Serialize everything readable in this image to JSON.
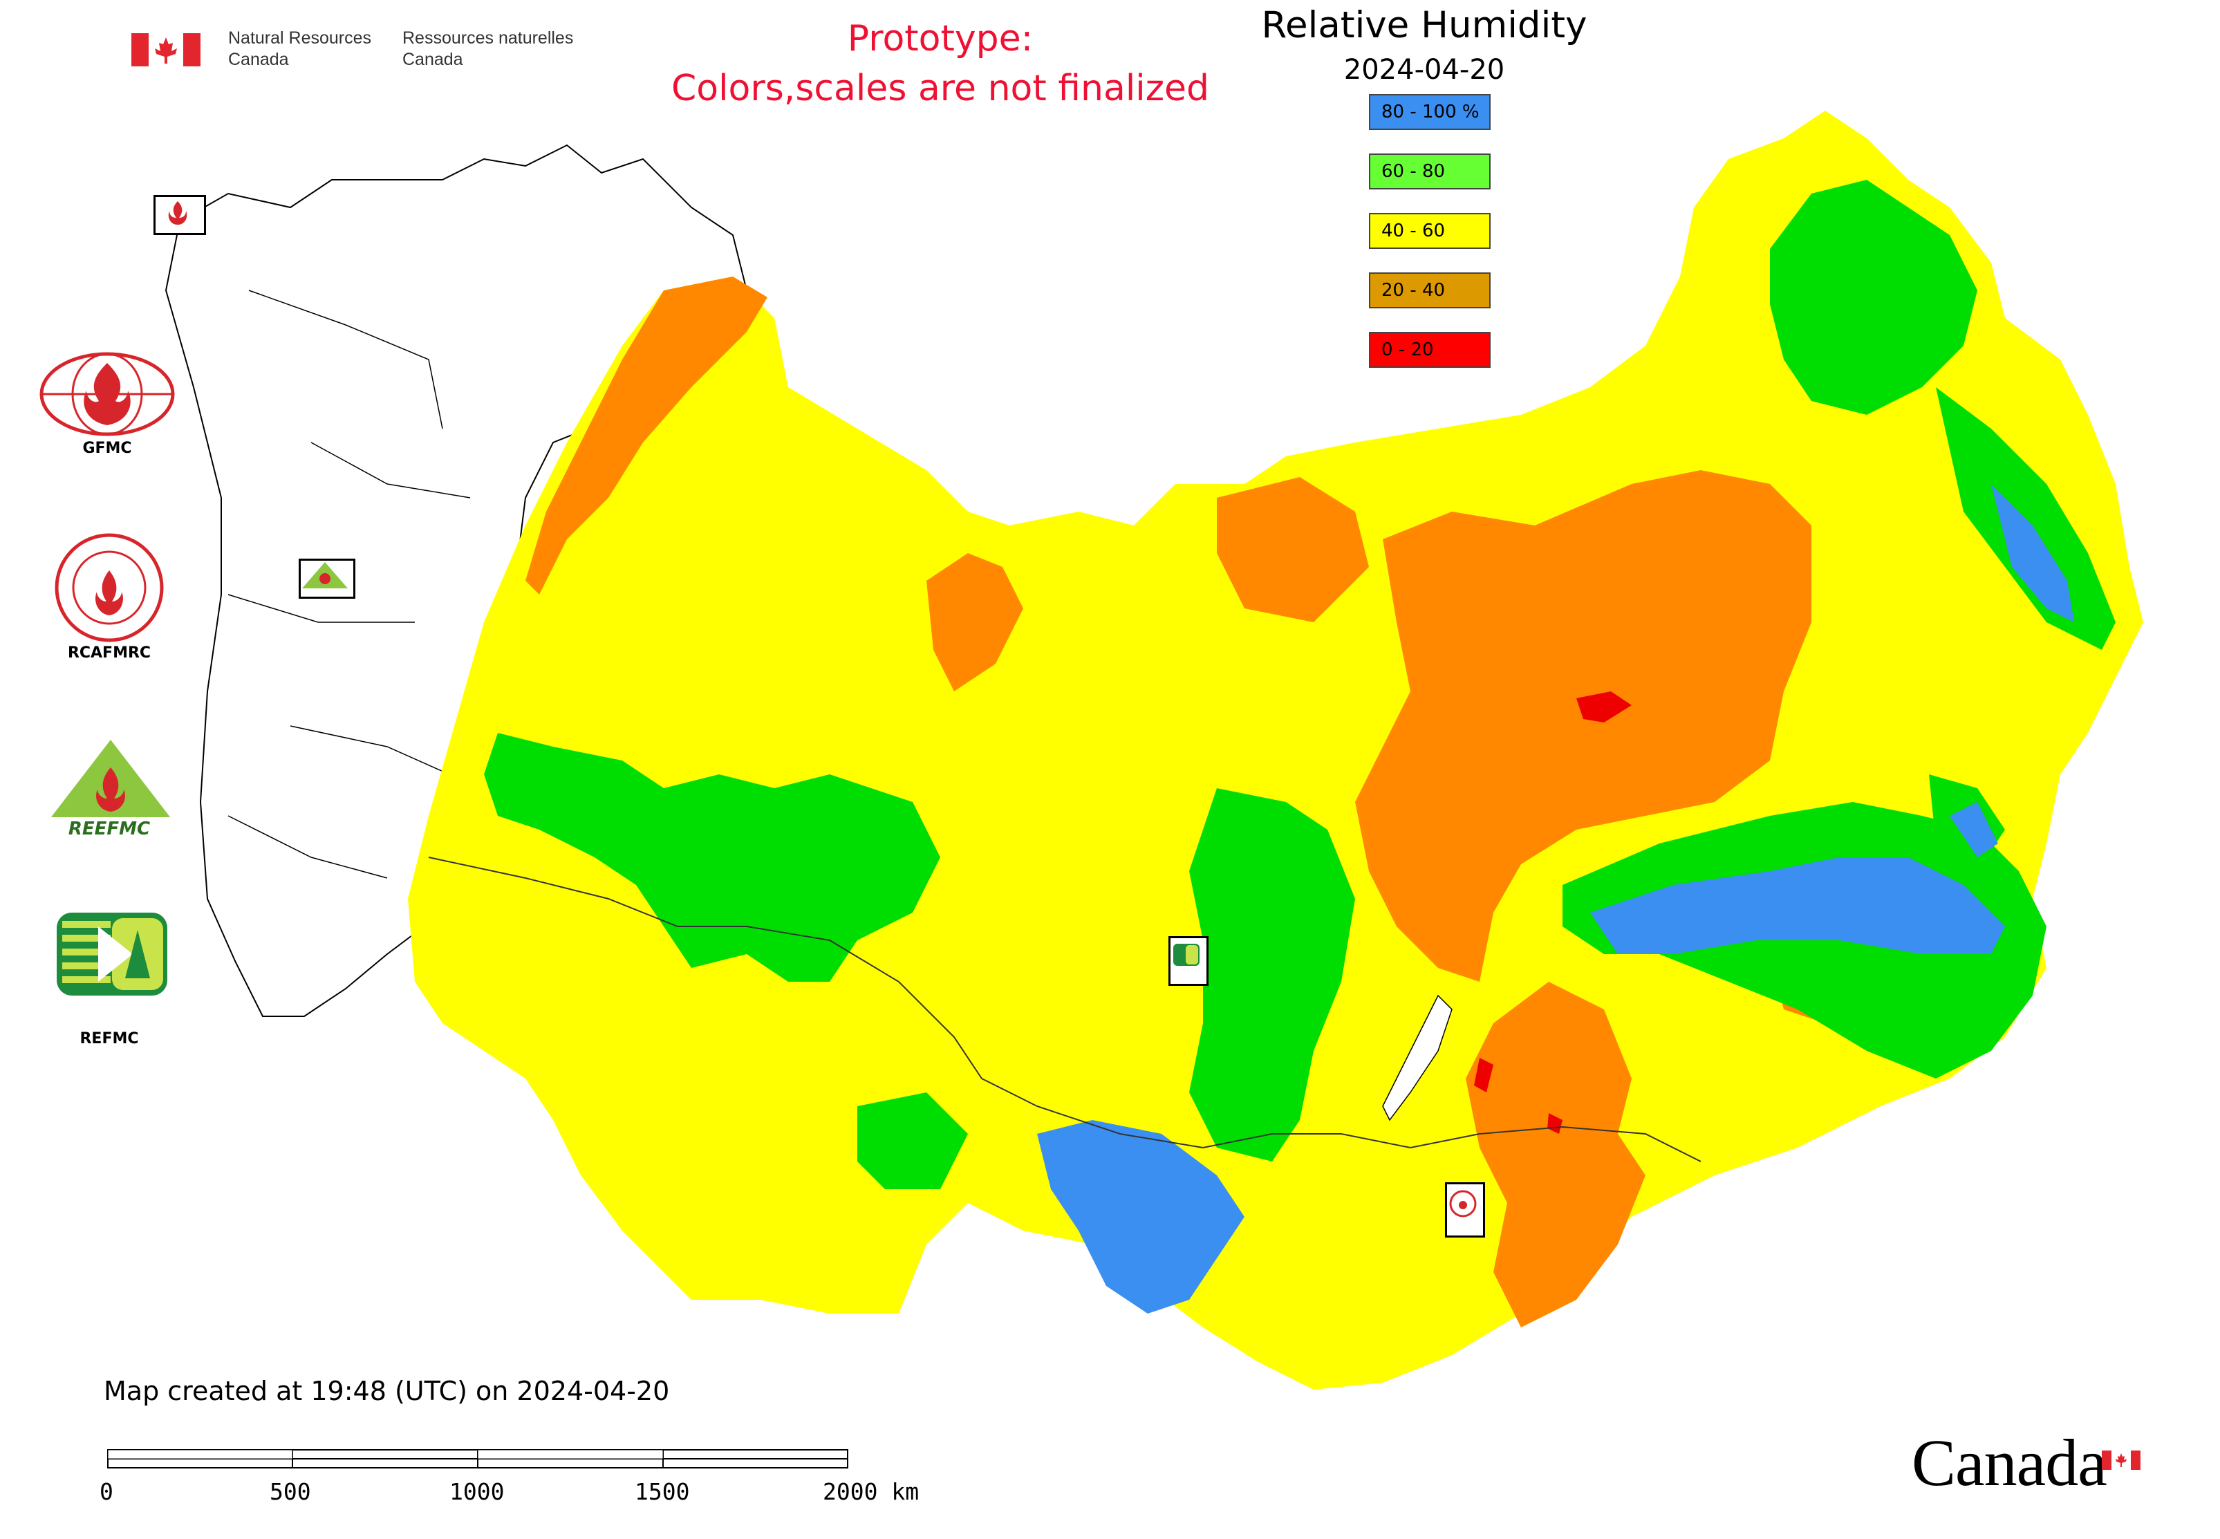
{
  "header": {
    "dept_en_line1": "Natural Resources",
    "dept_en_line2": "Canada",
    "dept_fr_line1": "Ressources naturelles",
    "dept_fr_line2": "Canada",
    "prototype_line1": "Prototype:",
    "prototype_line2": "Colors,scales are not finalized",
    "title": "Relative Humidity",
    "date": "2024-04-20"
  },
  "legend": {
    "items": [
      {
        "label": "80 - 100 %",
        "color": "#3b8ff0"
      },
      {
        "label": "60 - 80",
        "color": "#66ff33"
      },
      {
        "label": "40 - 60",
        "color": "#ffff00"
      },
      {
        "label": "20 - 40",
        "color": "#dd9900"
      },
      {
        "label": "0 - 20",
        "color": "#ff0000"
      }
    ]
  },
  "logos": {
    "gfmc": "GFMC",
    "rcafmrc": "RCAFMRC",
    "reefmc": "REEFMC",
    "refmc": "REFMC"
  },
  "footer": {
    "created": "Map created at 19:48 (UTC) on 2024-04-20",
    "scale_labels": [
      "0",
      "500",
      "1000",
      "1500",
      "2000 km"
    ],
    "wordmark": "Canada"
  },
  "colors": {
    "high": "#3b8ff0",
    "moist": "#00dd00",
    "mid": "#ffff00",
    "dry": "#ff8800",
    "very_dry": "#ee0000"
  }
}
